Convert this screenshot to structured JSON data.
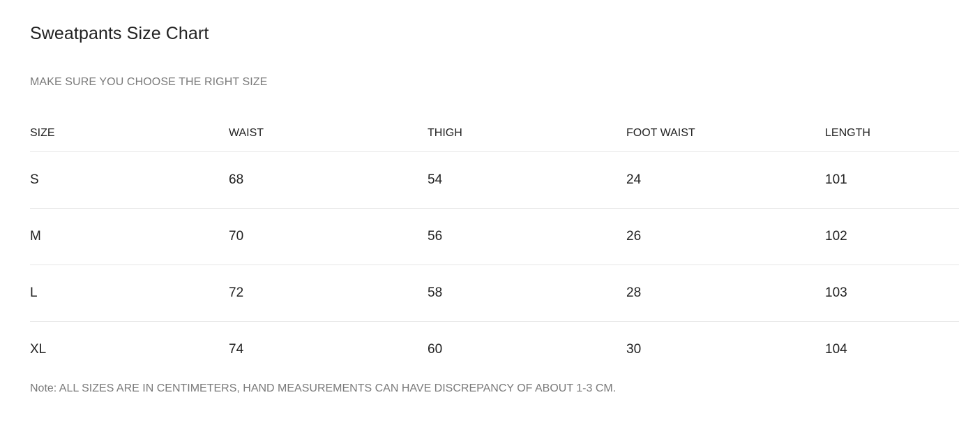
{
  "title": "Sweatpants Size Chart",
  "subtitle": "MAKE SURE YOU CHOOSE THE RIGHT SIZE",
  "table": {
    "headers": [
      "SIZE",
      "WAIST",
      "THIGH",
      "FOOT WAIST",
      "LENGTH"
    ],
    "rows": [
      [
        "S",
        "68",
        "54",
        "24",
        "101"
      ],
      [
        "M",
        "70",
        "56",
        "26",
        "102"
      ],
      [
        "L",
        "72",
        "58",
        "28",
        "103"
      ],
      [
        "XL",
        "74",
        "60",
        "30",
        "104"
      ]
    ]
  },
  "note": "Note: ALL SIZES ARE IN CENTIMETERS, HAND MEASUREMENTS CAN HAVE DISCREPANCY OF ABOUT 1-3 CM."
}
